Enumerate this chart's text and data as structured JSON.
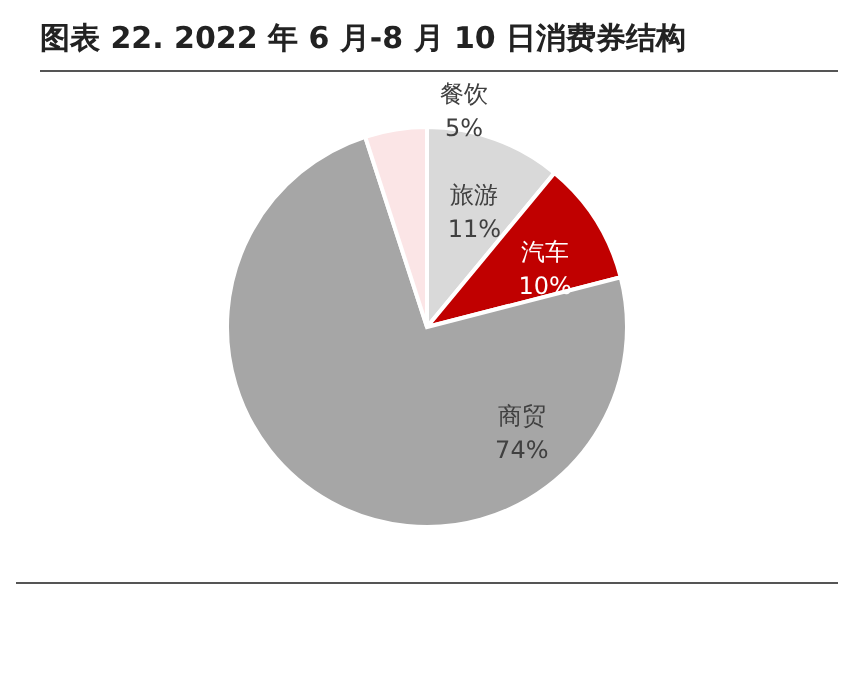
{
  "chart_data": {
    "type": "pie",
    "title": "图表 22. 2022 年 6 月-8 月 10 日消费券结构",
    "categories": [
      "旅游",
      "汽车",
      "商贸",
      "餐饮"
    ],
    "values": [
      11,
      10,
      74,
      5
    ],
    "colors": [
      "#d9d9d9",
      "#c00000",
      "#a6a6a6",
      "#fbe5e6"
    ],
    "value_labels": [
      "11%",
      "10%",
      "74%",
      "5%"
    ],
    "legend": false
  }
}
